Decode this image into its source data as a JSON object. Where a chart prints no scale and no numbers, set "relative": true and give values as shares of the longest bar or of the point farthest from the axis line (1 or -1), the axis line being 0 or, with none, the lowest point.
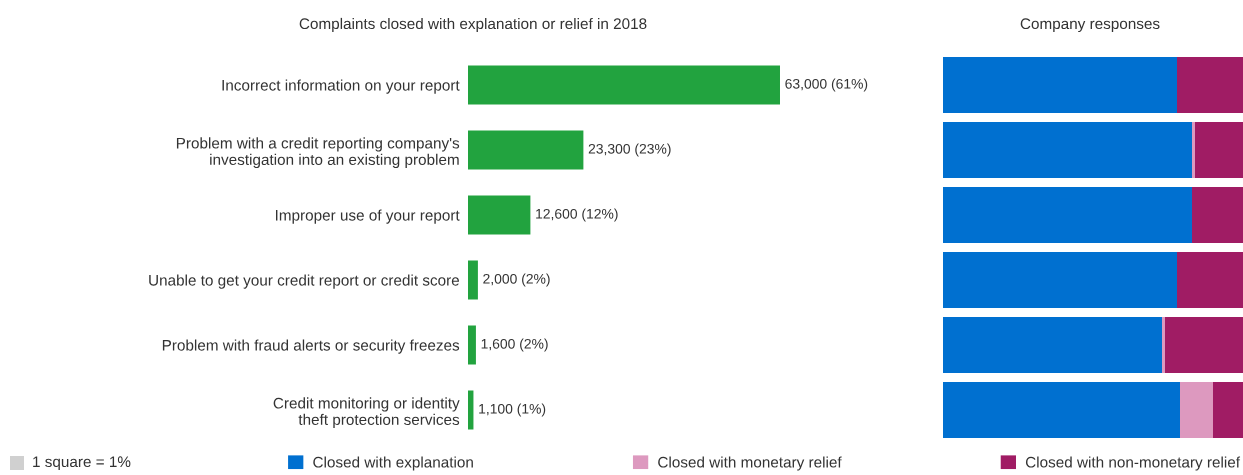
{
  "chart_data": [
    {
      "type": "bar",
      "orientation": "horizontal",
      "title": "Complaints closed with explanation or relief in 2018",
      "categories": [
        "Incorrect information on your report",
        "Problem with a credit reporting company's investigation into an existing problem",
        "Improper use of your report",
        "Unable to get your credit report or credit score",
        "Problem with fraud alerts or security freezes",
        "Credit monitoring or identity theft protection services"
      ],
      "values": [
        63000,
        23300,
        12600,
        2000,
        1600,
        1100
      ],
      "color": "#22a33f",
      "value_labels": [
        "63,000 (61%)",
        "23,300 (23%)",
        "12,600 (12%)",
        "2,000 (2%)",
        "1,600 (2%)",
        "1,100 (1%)"
      ]
    },
    {
      "type": "bar",
      "orientation": "horizontal",
      "stacked": true,
      "relative": true,
      "title": "Company responses",
      "categories": [
        null,
        null,
        null,
        null,
        null,
        null
      ],
      "series": [
        {
          "name": "Closed with explanation",
          "color": "#0070d0",
          "values": [
            0.78,
            0.83,
            0.83,
            0.78,
            0.73,
            0.79
          ]
        },
        {
          "name": "Closed with monetary relief",
          "color": "#dd99bf",
          "values": [
            0,
            0.01,
            0,
            0,
            0.01,
            0.11
          ]
        },
        {
          "name": "Closed with non-monetary relief",
          "color": "#a01c64",
          "values": [
            0.22,
            0.16,
            0.17,
            0.22,
            0.26,
            0.1
          ]
        }
      ],
      "annotations": [
        "1 square = 1%"
      ],
      "legend": "bottom"
    }
  ]
}
